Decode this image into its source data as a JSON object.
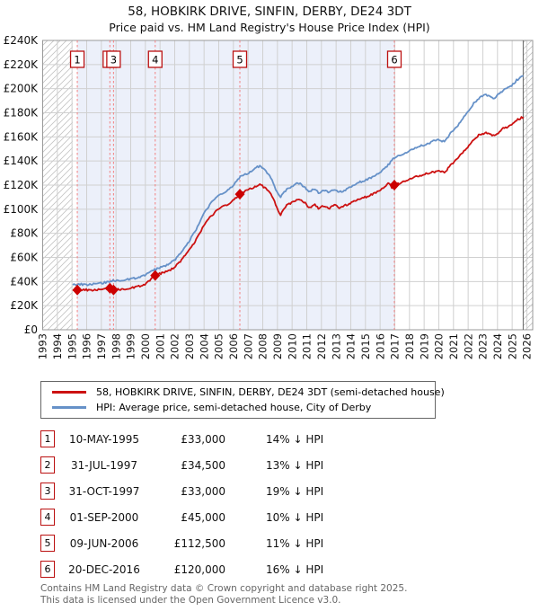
{
  "title": "58, HOBKIRK DRIVE, SINFIN, DERBY, DE24 3DT",
  "subtitle": "Price paid vs. HM Land Registry's House Price Index (HPI)",
  "legend": [
    {
      "label": "58, HOBKIRK DRIVE, SINFIN, DERBY, DE24 3DT (semi-detached house)",
      "color": "#cc1111"
    },
    {
      "label": "HPI: Average price, semi-detached house, City of Derby",
      "color": "#6691c8"
    }
  ],
  "footer": {
    "line1": "Contains HM Land Registry data © Crown copyright and database right 2025.",
    "line2": "This data is licensed under the Open Government Licence v3.0."
  },
  "chart_data": {
    "type": "line",
    "x_axis": {
      "start_year": 1993,
      "end_year": 2026,
      "span_years": 33.4,
      "tick_years": [
        1993,
        1994,
        1995,
        1996,
        1997,
        1998,
        1999,
        2000,
        2001,
        2002,
        2003,
        2004,
        2005,
        2006,
        2007,
        2008,
        2009,
        2010,
        2011,
        2012,
        2013,
        2014,
        2015,
        2016,
        2017,
        2018,
        2019,
        2020,
        2021,
        2022,
        2023,
        2024,
        2025,
        2026
      ]
    },
    "y_axis": {
      "min": 0,
      "max": 240000,
      "tick_step": 20000,
      "tick_labels": [
        "£0",
        "£20K",
        "£40K",
        "£60K",
        "£80K",
        "£100K",
        "£120K",
        "£140K",
        "£160K",
        "£180K",
        "£200K",
        "£220K",
        "£240K"
      ]
    },
    "data_start_year": 1995.05,
    "data_end_year": 2025.75,
    "colors": {
      "red": "#cc1111",
      "blue": "#6691c8",
      "marker": "#cc0000",
      "dashed": "#f28080",
      "shade": "#ecf0fa",
      "grid": "#d0d0d0",
      "hatch": "#c4c4c4",
      "border": "#999999",
      "today_line": "#666666",
      "box_border": "#bb1111"
    },
    "series": [
      {
        "name": "HPI: Average price, semi-detached house, City of Derby",
        "color": "#6691c8",
        "points": [
          [
            1995.05,
            37500
          ],
          [
            1995.5,
            37800
          ],
          [
            1996,
            37400
          ],
          [
            1996.5,
            38000
          ],
          [
            1997,
            38800
          ],
          [
            1997.58,
            39700
          ],
          [
            1997.83,
            40700
          ],
          [
            1998.2,
            41000
          ],
          [
            1998.6,
            41400
          ],
          [
            1999,
            42000
          ],
          [
            1999.5,
            43500
          ],
          [
            2000,
            45500
          ],
          [
            2000.67,
            50000
          ],
          [
            2001,
            51500
          ],
          [
            2001.5,
            54000
          ],
          [
            2002,
            58000
          ],
          [
            2002.5,
            65000
          ],
          [
            2003,
            74000
          ],
          [
            2003.5,
            84000
          ],
          [
            2004,
            97000
          ],
          [
            2004.4,
            104000
          ],
          [
            2004.8,
            109000
          ],
          [
            2005.2,
            113000
          ],
          [
            2005.6,
            115500
          ],
          [
            2006,
            120000
          ],
          [
            2006.44,
            126500
          ],
          [
            2007,
            130000
          ],
          [
            2007.5,
            134000
          ],
          [
            2007.8,
            136000
          ],
          [
            2008.2,
            132000
          ],
          [
            2008.6,
            125000
          ],
          [
            2009,
            113000
          ],
          [
            2009.2,
            110000
          ],
          [
            2009.6,
            116000
          ],
          [
            2010,
            119000
          ],
          [
            2010.4,
            122000
          ],
          [
            2010.8,
            119000
          ],
          [
            2011.2,
            114000
          ],
          [
            2011.5,
            117000
          ],
          [
            2011.8,
            113500
          ],
          [
            2012.2,
            116000
          ],
          [
            2012.5,
            113500
          ],
          [
            2012.9,
            116500
          ],
          [
            2013.2,
            114000
          ],
          [
            2013.6,
            116000
          ],
          [
            2014,
            119000
          ],
          [
            2014.5,
            122000
          ],
          [
            2015,
            124000
          ],
          [
            2015.5,
            127000
          ],
          [
            2016,
            131000
          ],
          [
            2016.5,
            136000
          ],
          [
            2016.97,
            143000
          ],
          [
            2017.3,
            144500
          ],
          [
            2017.7,
            147000
          ],
          [
            2018,
            148500
          ],
          [
            2018.4,
            151000
          ],
          [
            2018.8,
            152500
          ],
          [
            2019.2,
            154000
          ],
          [
            2019.6,
            156500
          ],
          [
            2020,
            157500
          ],
          [
            2020.4,
            156000
          ],
          [
            2020.8,
            163000
          ],
          [
            2021.2,
            168000
          ],
          [
            2021.6,
            175000
          ],
          [
            2022,
            181000
          ],
          [
            2022.4,
            188000
          ],
          [
            2022.8,
            193000
          ],
          [
            2023.2,
            195000
          ],
          [
            2023.5,
            193500
          ],
          [
            2023.8,
            192000
          ],
          [
            2024.1,
            195500
          ],
          [
            2024.4,
            199000
          ],
          [
            2024.7,
            201000
          ],
          [
            2025,
            203000
          ],
          [
            2025.3,
            207000
          ],
          [
            2025.75,
            211000
          ]
        ]
      },
      {
        "name": "58, HOBKIRK DRIVE, SINFIN, DERBY, DE24 3DT (semi-detached house)",
        "color": "#cc1111",
        "points": [
          [
            1995.05,
            33000
          ],
          [
            1995.36,
            33000
          ],
          [
            1995.8,
            33300
          ],
          [
            1996.2,
            32800
          ],
          [
            1996.6,
            33100
          ],
          [
            1997,
            33400
          ],
          [
            1997.58,
            34500
          ],
          [
            1997.83,
            33000
          ],
          [
            1998.2,
            33400
          ],
          [
            1998.6,
            33900
          ],
          [
            1999,
            34500
          ],
          [
            1999.5,
            35800
          ],
          [
            2000,
            38000
          ],
          [
            2000.67,
            45000
          ],
          [
            2001,
            46500
          ],
          [
            2001.5,
            48500
          ],
          [
            2002,
            52000
          ],
          [
            2002.5,
            58500
          ],
          [
            2003,
            66500
          ],
          [
            2003.5,
            75500
          ],
          [
            2004,
            87000
          ],
          [
            2004.4,
            93500
          ],
          [
            2004.8,
            98000
          ],
          [
            2005.2,
            101500
          ],
          [
            2005.6,
            104000
          ],
          [
            2006,
            107500
          ],
          [
            2006.44,
            112500
          ],
          [
            2007,
            116000
          ],
          [
            2007.5,
            119000
          ],
          [
            2007.8,
            120500
          ],
          [
            2008.2,
            117500
          ],
          [
            2008.6,
            112000
          ],
          [
            2009,
            100000
          ],
          [
            2009.2,
            95000
          ],
          [
            2009.6,
            103000
          ],
          [
            2010,
            105500
          ],
          [
            2010.4,
            108500
          ],
          [
            2010.8,
            106000
          ],
          [
            2011.2,
            101000
          ],
          [
            2011.5,
            104000
          ],
          [
            2011.8,
            100500
          ],
          [
            2012.2,
            103000
          ],
          [
            2012.5,
            100500
          ],
          [
            2012.9,
            103500
          ],
          [
            2013.2,
            101000
          ],
          [
            2013.6,
            103000
          ],
          [
            2014,
            105500
          ],
          [
            2014.5,
            108500
          ],
          [
            2015,
            110000
          ],
          [
            2015.5,
            112500
          ],
          [
            2016,
            116000
          ],
          [
            2016.6,
            122000
          ],
          [
            2016.85,
            117000
          ],
          [
            2016.97,
            120000
          ],
          [
            2017.3,
            121500
          ],
          [
            2017.7,
            123500
          ],
          [
            2018,
            125500
          ],
          [
            2018.4,
            127000
          ],
          [
            2018.8,
            128000
          ],
          [
            2019.2,
            129500
          ],
          [
            2019.6,
            131000
          ],
          [
            2020,
            131500
          ],
          [
            2020.4,
            130500
          ],
          [
            2020.8,
            136500
          ],
          [
            2021.2,
            141000
          ],
          [
            2021.6,
            147000
          ],
          [
            2022,
            152000
          ],
          [
            2022.4,
            158000
          ],
          [
            2022.8,
            162000
          ],
          [
            2023.2,
            163500
          ],
          [
            2023.5,
            162000
          ],
          [
            2023.8,
            161000
          ],
          [
            2024.1,
            164000
          ],
          [
            2024.4,
            167000
          ],
          [
            2024.7,
            168500
          ],
          [
            2025,
            170500
          ],
          [
            2025.3,
            174000
          ],
          [
            2025.75,
            176500
          ]
        ]
      }
    ],
    "sales": [
      {
        "num": "1",
        "date": "10-MAY-1995",
        "year": 1995.36,
        "price": 33000,
        "price_label": "£33,000",
        "vs_hpi": "14% ↓ HPI"
      },
      {
        "num": "2",
        "date": "31-JUL-1997",
        "year": 1997.58,
        "price": 34500,
        "price_label": "£34,500",
        "vs_hpi": "13% ↓ HPI"
      },
      {
        "num": "3",
        "date": "31-OCT-1997",
        "year": 1997.83,
        "price": 33000,
        "price_label": "£33,000",
        "vs_hpi": "19% ↓ HPI"
      },
      {
        "num": "4",
        "date": "01-SEP-2000",
        "year": 2000.67,
        "price": 45000,
        "price_label": "£45,000",
        "vs_hpi": "10% ↓ HPI"
      },
      {
        "num": "5",
        "date": "09-JUN-2006",
        "year": 2006.44,
        "price": 112500,
        "price_label": "£112,500",
        "vs_hpi": "11% ↓ HPI"
      },
      {
        "num": "6",
        "date": "20-DEC-2016",
        "year": 2016.97,
        "price": 120000,
        "price_label": "£120,000",
        "vs_hpi": "16% ↓ HPI"
      }
    ],
    "shaded_band": {
      "from_sale": 0,
      "to_sale": 5
    },
    "legend_position": "below",
    "grid": true
  }
}
